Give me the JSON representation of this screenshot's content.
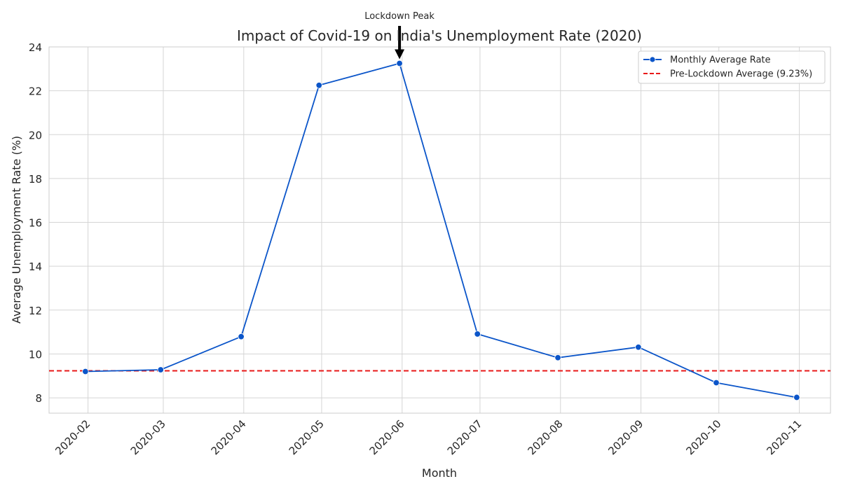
{
  "chart_data": {
    "type": "line",
    "title": "Impact of Covid-19 on India's Unemployment Rate (2020)",
    "xlabel": "Month",
    "ylabel": "Average Unemployment Rate (%)",
    "x": [
      "2020-02",
      "2020-03",
      "2020-04",
      "2020-05",
      "2020-06",
      "2020-07",
      "2020-08",
      "2020-09",
      "2020-10",
      "2020-11"
    ],
    "x_dates": [
      "2020-01-31",
      "2020-02-29",
      "2020-03-31",
      "2020-04-30",
      "2020-05-31",
      "2020-06-30",
      "2020-07-31",
      "2020-08-31",
      "2020-09-30",
      "2020-10-31"
    ],
    "x_ticks": [
      "2020-02-01",
      "2020-03-01",
      "2020-04-01",
      "2020-05-01",
      "2020-06-01",
      "2020-07-01",
      "2020-08-01",
      "2020-09-01",
      "2020-10-01",
      "2020-11-01"
    ],
    "xlim": [
      "2020-01-17",
      "2020-11-13"
    ],
    "series": [
      {
        "name": "Monthly Average Rate",
        "color": "#0b55c9",
        "marker": "circle",
        "values": [
          9.2,
          9.28,
          10.79,
          22.25,
          23.25,
          10.91,
          9.83,
          10.31,
          8.69,
          8.02
        ]
      }
    ],
    "reference_line": {
      "name": "Pre-Lockdown Average (9.23%)",
      "value": 9.23,
      "color": "#e81919",
      "style": "dashed"
    },
    "annotation": {
      "text": "Lockdown Peak",
      "target_index": 4
    },
    "yticks": [
      8,
      10,
      12,
      14,
      16,
      18,
      20,
      22,
      24
    ],
    "ylim": [
      7.3,
      24.0
    ],
    "grid": true,
    "legend_position": "top-right"
  }
}
